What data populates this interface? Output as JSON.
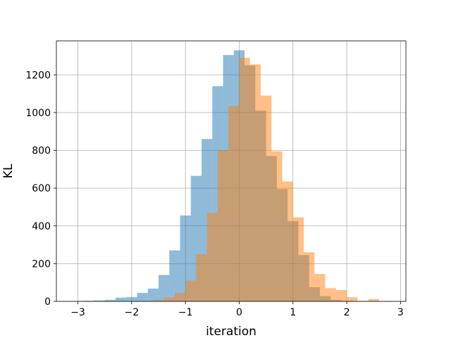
{
  "chart_data": {
    "type": "bar",
    "subtype": "overlapping-histogram",
    "title": "",
    "xlabel": "iteration",
    "ylabel": "KL",
    "xlim": [
      -3.4,
      3.1
    ],
    "ylim": [
      0,
      1380
    ],
    "x_ticks": [
      -3,
      -2,
      -1,
      0,
      1,
      2,
      3
    ],
    "x_tick_labels": [
      "−3",
      "−2",
      "−1",
      "0",
      "1",
      "2",
      "3"
    ],
    "y_ticks": [
      0,
      200,
      400,
      600,
      800,
      1000,
      1200
    ],
    "y_tick_labels": [
      "0",
      "200",
      "400",
      "600",
      "800",
      "1000",
      "1200"
    ],
    "grid": true,
    "legend": "none",
    "bin_width": 0.2,
    "series": [
      {
        "color": "#1f77b4",
        "opacity": 0.5,
        "bins": [
          {
            "x0": -3.1,
            "x1": -2.9,
            "value": 2
          },
          {
            "x0": -2.9,
            "x1": -2.7,
            "value": 3
          },
          {
            "x0": -2.7,
            "x1": -2.5,
            "value": 5
          },
          {
            "x0": -2.5,
            "x1": -2.3,
            "value": 8
          },
          {
            "x0": -2.3,
            "x1": -2.1,
            "value": 20
          },
          {
            "x0": -2.1,
            "x1": -1.9,
            "value": 22
          },
          {
            "x0": -1.9,
            "x1": -1.7,
            "value": 45
          },
          {
            "x0": -1.7,
            "x1": -1.5,
            "value": 68
          },
          {
            "x0": -1.5,
            "x1": -1.3,
            "value": 140
          },
          {
            "x0": -1.3,
            "x1": -1.1,
            "value": 270
          },
          {
            "x0": -1.1,
            "x1": -0.9,
            "value": 455
          },
          {
            "x0": -0.9,
            "x1": -0.7,
            "value": 665
          },
          {
            "x0": -0.7,
            "x1": -0.5,
            "value": 860
          },
          {
            "x0": -0.5,
            "x1": -0.3,
            "value": 1140
          },
          {
            "x0": -0.3,
            "x1": -0.1,
            "value": 1305
          },
          {
            "x0": -0.1,
            "x1": 0.1,
            "value": 1330
          },
          {
            "x0": 0.1,
            "x1": 0.3,
            "value": 1250
          },
          {
            "x0": 0.3,
            "x1": 0.5,
            "value": 1010
          },
          {
            "x0": 0.5,
            "x1": 0.7,
            "value": 770
          },
          {
            "x0": 0.7,
            "x1": 0.9,
            "value": 595
          },
          {
            "x0": 0.9,
            "x1": 1.1,
            "value": 425
          },
          {
            "x0": 1.1,
            "x1": 1.3,
            "value": 245
          },
          {
            "x0": 1.3,
            "x1": 1.5,
            "value": 75
          },
          {
            "x0": 1.5,
            "x1": 1.7,
            "value": 28
          },
          {
            "x0": 1.7,
            "x1": 1.9,
            "value": 8
          },
          {
            "x0": 1.9,
            "x1": 2.1,
            "value": 3
          }
        ]
      },
      {
        "color": "#ff7f0e",
        "opacity": 0.5,
        "bins": [
          {
            "x0": -1.8,
            "x1": -1.6,
            "value": 2
          },
          {
            "x0": -1.6,
            "x1": -1.4,
            "value": 8
          },
          {
            "x0": -1.4,
            "x1": -1.2,
            "value": 20
          },
          {
            "x0": -1.2,
            "x1": -1.0,
            "value": 45
          },
          {
            "x0": -1.0,
            "x1": -0.8,
            "value": 110
          },
          {
            "x0": -0.8,
            "x1": -0.6,
            "value": 250
          },
          {
            "x0": -0.6,
            "x1": -0.4,
            "value": 470
          },
          {
            "x0": -0.4,
            "x1": -0.2,
            "value": 800
          },
          {
            "x0": -0.2,
            "x1": 0.0,
            "value": 1035
          },
          {
            "x0": 0.0,
            "x1": 0.2,
            "value": 1290
          },
          {
            "x0": 0.2,
            "x1": 0.4,
            "value": 1255
          },
          {
            "x0": 0.4,
            "x1": 0.6,
            "value": 1090
          },
          {
            "x0": 0.6,
            "x1": 0.8,
            "value": 795
          },
          {
            "x0": 0.8,
            "x1": 1.0,
            "value": 635
          },
          {
            "x0": 1.0,
            "x1": 1.2,
            "value": 445
          },
          {
            "x0": 1.2,
            "x1": 1.4,
            "value": 260
          },
          {
            "x0": 1.4,
            "x1": 1.6,
            "value": 145
          },
          {
            "x0": 1.6,
            "x1": 1.8,
            "value": 70
          },
          {
            "x0": 1.8,
            "x1": 2.0,
            "value": 60
          },
          {
            "x0": 2.0,
            "x1": 2.2,
            "value": 22
          },
          {
            "x0": 2.2,
            "x1": 2.4,
            "value": 3
          },
          {
            "x0": 2.4,
            "x1": 2.6,
            "value": 12
          },
          {
            "x0": 2.6,
            "x1": 2.8,
            "value": 2
          }
        ]
      }
    ]
  }
}
